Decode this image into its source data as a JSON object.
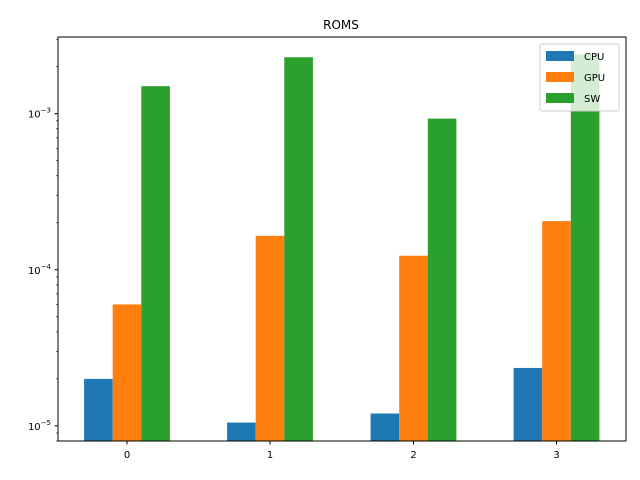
{
  "chart_data": {
    "type": "bar",
    "title": "ROMS",
    "xlabel": "",
    "ylabel": "",
    "categories": [
      "0",
      "1",
      "2",
      "3"
    ],
    "y_scale": "log",
    "ylim": [
      8e-06,
      0.0031
    ],
    "y_ticks": [
      {
        "value": 1e-05,
        "base": "10",
        "exp": "−5"
      },
      {
        "value": 0.0001,
        "base": "10",
        "exp": "−4"
      },
      {
        "value": 0.001,
        "base": "10",
        "exp": "−3"
      }
    ],
    "grid": false,
    "legend_position": "top-right",
    "series": [
      {
        "name": "CPU",
        "color": "#1f77b4",
        "values": [
          2e-05,
          1.05e-05,
          1.2e-05,
          2.35e-05
        ]
      },
      {
        "name": "GPU",
        "color": "#ff7f0e",
        "values": [
          6e-05,
          0.000165,
          0.000123,
          0.000205
        ]
      },
      {
        "name": "SW",
        "color": "#2ca02c",
        "values": [
          0.0015,
          0.0023,
          0.00093,
          0.0024
        ]
      }
    ]
  }
}
